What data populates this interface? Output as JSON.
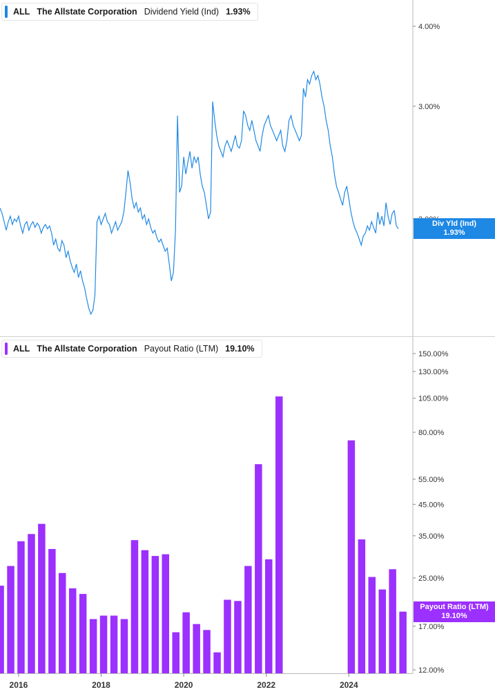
{
  "chart_data": [
    {
      "type": "line",
      "ticker": "ALL",
      "company": "The Allstate Corporation",
      "metric": "Dividend Yield (Ind)",
      "current_value": "1.93%",
      "badge_label": "Div Yld (Ind)",
      "badge_value": "1.93%",
      "scale": "log",
      "ylim": [
        1.3,
        4.3
      ],
      "yticks": [
        4.0,
        3.0,
        2.0
      ],
      "ytick_labels": [
        "4.00%",
        "3.00%",
        "2.00%"
      ],
      "color": "#1e88e5",
      "series": [
        {
          "values": [
            [
              2015.55,
              2.08
            ],
            [
              2015.6,
              2.04
            ],
            [
              2015.65,
              1.98
            ],
            [
              2015.7,
              1.92
            ],
            [
              2015.75,
              1.98
            ],
            [
              2015.8,
              2.02
            ],
            [
              2015.85,
              1.96
            ],
            [
              2015.9,
              2.0
            ],
            [
              2015.95,
              1.98
            ],
            [
              2016.0,
              2.02
            ],
            [
              2016.05,
              1.95
            ],
            [
              2016.1,
              1.9
            ],
            [
              2016.15,
              1.96
            ],
            [
              2016.2,
              1.98
            ],
            [
              2016.25,
              1.92
            ],
            [
              2016.3,
              1.96
            ],
            [
              2016.35,
              1.98
            ],
            [
              2016.4,
              1.94
            ],
            [
              2016.45,
              1.97
            ],
            [
              2016.5,
              1.95
            ],
            [
              2016.55,
              1.9
            ],
            [
              2016.6,
              1.94
            ],
            [
              2016.65,
              1.96
            ],
            [
              2016.7,
              1.93
            ],
            [
              2016.75,
              1.95
            ],
            [
              2016.8,
              1.9
            ],
            [
              2016.85,
              1.82
            ],
            [
              2016.9,
              1.86
            ],
            [
              2016.95,
              1.8
            ],
            [
              2017.0,
              1.78
            ],
            [
              2017.05,
              1.85
            ],
            [
              2017.1,
              1.82
            ],
            [
              2017.15,
              1.74
            ],
            [
              2017.2,
              1.78
            ],
            [
              2017.25,
              1.72
            ],
            [
              2017.3,
              1.68
            ],
            [
              2017.35,
              1.65
            ],
            [
              2017.4,
              1.7
            ],
            [
              2017.45,
              1.62
            ],
            [
              2017.5,
              1.66
            ],
            [
              2017.55,
              1.6
            ],
            [
              2017.6,
              1.56
            ],
            [
              2017.65,
              1.5
            ],
            [
              2017.7,
              1.45
            ],
            [
              2017.75,
              1.42
            ],
            [
              2017.8,
              1.44
            ],
            [
              2017.85,
              1.52
            ],
            [
              2017.9,
              1.98
            ],
            [
              2017.95,
              2.02
            ],
            [
              2018.0,
              1.96
            ],
            [
              2018.05,
              2.0
            ],
            [
              2018.1,
              2.04
            ],
            [
              2018.15,
              1.98
            ],
            [
              2018.2,
              1.96
            ],
            [
              2018.25,
              1.9
            ],
            [
              2018.3,
              1.94
            ],
            [
              2018.35,
              1.98
            ],
            [
              2018.4,
              1.92
            ],
            [
              2018.45,
              1.95
            ],
            [
              2018.5,
              1.98
            ],
            [
              2018.55,
              2.05
            ],
            [
              2018.6,
              2.2
            ],
            [
              2018.65,
              2.38
            ],
            [
              2018.7,
              2.28
            ],
            [
              2018.75,
              2.15
            ],
            [
              2018.8,
              2.08
            ],
            [
              2018.85,
              2.12
            ],
            [
              2018.9,
              2.05
            ],
            [
              2018.95,
              2.08
            ],
            [
              2019.0,
              2.0
            ],
            [
              2019.05,
              2.03
            ],
            [
              2019.1,
              1.96
            ],
            [
              2019.15,
              2.0
            ],
            [
              2019.2,
              1.94
            ],
            [
              2019.25,
              1.9
            ],
            [
              2019.3,
              1.92
            ],
            [
              2019.35,
              1.87
            ],
            [
              2019.4,
              1.84
            ],
            [
              2019.45,
              1.86
            ],
            [
              2019.5,
              1.82
            ],
            [
              2019.55,
              1.78
            ],
            [
              2019.6,
              1.8
            ],
            [
              2019.65,
              1.7
            ],
            [
              2019.7,
              1.6
            ],
            [
              2019.75,
              1.65
            ],
            [
              2019.8,
              1.92
            ],
            [
              2019.85,
              2.9
            ],
            [
              2019.9,
              2.2
            ],
            [
              2019.95,
              2.25
            ],
            [
              2020.0,
              2.5
            ],
            [
              2020.05,
              2.35
            ],
            [
              2020.1,
              2.45
            ],
            [
              2020.15,
              2.55
            ],
            [
              2020.2,
              2.4
            ],
            [
              2020.25,
              2.5
            ],
            [
              2020.3,
              2.45
            ],
            [
              2020.35,
              2.5
            ],
            [
              2020.4,
              2.35
            ],
            [
              2020.45,
              2.25
            ],
            [
              2020.5,
              2.2
            ],
            [
              2020.55,
              2.1
            ],
            [
              2020.6,
              2.0
            ],
            [
              2020.65,
              2.05
            ],
            [
              2020.7,
              3.05
            ],
            [
              2020.75,
              2.85
            ],
            [
              2020.8,
              2.7
            ],
            [
              2020.85,
              2.6
            ],
            [
              2020.9,
              2.55
            ],
            [
              2020.95,
              2.5
            ],
            [
              2021.0,
              2.6
            ],
            [
              2021.05,
              2.65
            ],
            [
              2021.1,
              2.6
            ],
            [
              2021.15,
              2.55
            ],
            [
              2021.2,
              2.62
            ],
            [
              2021.25,
              2.7
            ],
            [
              2021.3,
              2.6
            ],
            [
              2021.35,
              2.58
            ],
            [
              2021.4,
              2.65
            ],
            [
              2021.45,
              2.95
            ],
            [
              2021.5,
              2.9
            ],
            [
              2021.55,
              2.8
            ],
            [
              2021.6,
              2.75
            ],
            [
              2021.65,
              2.85
            ],
            [
              2021.7,
              2.75
            ],
            [
              2021.75,
              2.65
            ],
            [
              2021.8,
              2.6
            ],
            [
              2021.85,
              2.55
            ],
            [
              2021.9,
              2.7
            ],
            [
              2021.95,
              2.8
            ],
            [
              2022.0,
              2.85
            ],
            [
              2022.05,
              2.9
            ],
            [
              2022.1,
              2.8
            ],
            [
              2022.15,
              2.75
            ],
            [
              2022.2,
              2.7
            ],
            [
              2022.25,
              2.65
            ],
            [
              2022.3,
              2.7
            ],
            [
              2022.35,
              2.75
            ],
            [
              2022.4,
              2.6
            ],
            [
              2022.45,
              2.55
            ],
            [
              2022.5,
              2.65
            ],
            [
              2022.55,
              2.85
            ],
            [
              2022.6,
              2.9
            ],
            [
              2022.65,
              2.8
            ],
            [
              2022.7,
              2.75
            ],
            [
              2022.75,
              2.7
            ],
            [
              2022.8,
              2.65
            ],
            [
              2022.85,
              2.7
            ],
            [
              2022.9,
              3.2
            ],
            [
              2022.95,
              3.1
            ],
            [
              2023.0,
              3.3
            ],
            [
              2023.05,
              3.25
            ],
            [
              2023.1,
              3.35
            ],
            [
              2023.15,
              3.4
            ],
            [
              2023.2,
              3.3
            ],
            [
              2023.25,
              3.35
            ],
            [
              2023.3,
              3.25
            ],
            [
              2023.35,
              3.1
            ],
            [
              2023.4,
              3.0
            ],
            [
              2023.45,
              2.85
            ],
            [
              2023.5,
              2.75
            ],
            [
              2023.55,
              2.6
            ],
            [
              2023.6,
              2.5
            ],
            [
              2023.65,
              2.35
            ],
            [
              2023.7,
              2.25
            ],
            [
              2023.75,
              2.2
            ],
            [
              2023.8,
              2.15
            ],
            [
              2023.85,
              2.1
            ],
            [
              2023.9,
              2.2
            ],
            [
              2023.95,
              2.25
            ],
            [
              2024.0,
              2.15
            ],
            [
              2024.05,
              2.05
            ],
            [
              2024.1,
              1.98
            ],
            [
              2024.15,
              1.93
            ],
            [
              2024.2,
              1.9
            ],
            [
              2024.25,
              1.86
            ],
            [
              2024.3,
              1.82
            ],
            [
              2024.35,
              1.88
            ],
            [
              2024.4,
              1.9
            ],
            [
              2024.45,
              1.95
            ],
            [
              2024.5,
              1.92
            ],
            [
              2024.55,
              1.98
            ],
            [
              2024.6,
              1.94
            ],
            [
              2024.65,
              1.9
            ],
            [
              2024.7,
              2.05
            ],
            [
              2024.75,
              1.96
            ],
            [
              2024.8,
              2.02
            ],
            [
              2024.85,
              1.95
            ],
            [
              2024.9,
              2.12
            ],
            [
              2024.95,
              2.02
            ],
            [
              2025.0,
              1.96
            ],
            [
              2025.05,
              2.04
            ],
            [
              2025.1,
              2.06
            ],
            [
              2025.15,
              1.95
            ],
            [
              2025.2,
              1.93
            ]
          ]
        }
      ]
    },
    {
      "type": "bar",
      "ticker": "ALL",
      "company": "The Allstate Corporation",
      "metric": "Payout Ratio (LTM)",
      "current_value": "19.10%",
      "badge_label": "Payout Ratio (LTM)",
      "badge_value": "19.10%",
      "scale": "log",
      "ylim": [
        12,
        160
      ],
      "yticks": [
        150,
        130,
        105,
        80,
        55,
        45,
        35,
        25,
        17,
        12
      ],
      "ytick_labels": [
        "150.00%",
        "130.00%",
        "105.00%",
        "80.00%",
        "55.00%",
        "45.00%",
        "35.00%",
        "25.00%",
        "17.00%",
        "12.00%"
      ],
      "color": "#9b30ff",
      "x": [
        2015.56,
        2015.81,
        2016.06,
        2016.31,
        2016.56,
        2016.81,
        2017.06,
        2017.31,
        2017.56,
        2017.81,
        2018.06,
        2018.31,
        2018.56,
        2018.81,
        2019.06,
        2019.31,
        2019.56,
        2019.81,
        2020.06,
        2020.31,
        2020.56,
        2020.81,
        2021.06,
        2021.31,
        2021.56,
        2021.81,
        2022.06,
        2022.31,
        2022.56,
        2024.06,
        2024.31,
        2024.56,
        2024.81,
        2025.06,
        2025.31
      ],
      "values": [
        23.5,
        27.5,
        33.5,
        35.5,
        38.5,
        31.5,
        26.0,
        23.0,
        22.0,
        18.0,
        18.5,
        18.5,
        18.0,
        33.8,
        31.2,
        29.8,
        30.2,
        16.2,
        19.0,
        17.3,
        16.5,
        13.8,
        21.0,
        20.8,
        27.5,
        62.0,
        29.0,
        106.5,
        0,
        75.0,
        34.0,
        25.2,
        22.8,
        26.8,
        19.1
      ]
    }
  ],
  "x_axis": {
    "range": [
      2015.55,
      2025.55
    ],
    "ticks": [
      2016,
      2018,
      2020,
      2022,
      2024
    ],
    "tick_labels": [
      "2016",
      "2018",
      "2020",
      "2022",
      "2024"
    ]
  }
}
